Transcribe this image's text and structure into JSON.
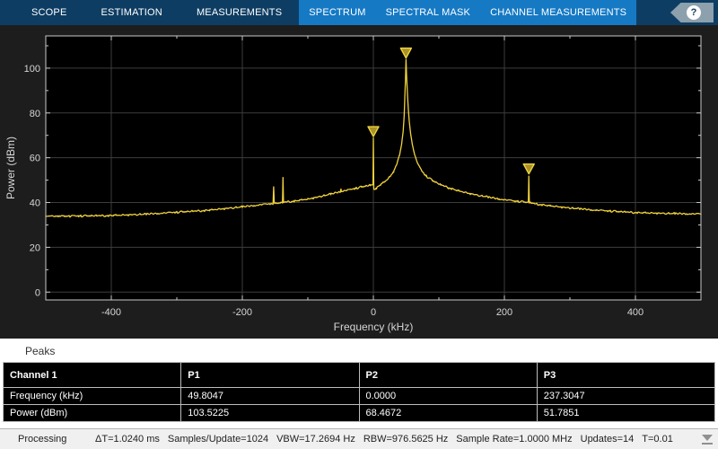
{
  "toolstrip": {
    "tabs": [
      "SCOPE",
      "ESTIMATION",
      "MEASUREMENTS"
    ],
    "context_tabs": [
      "SPECTRUM",
      "SPECTRAL MASK",
      "CHANNEL MEASUREMENTS"
    ],
    "help_label": "?",
    "colors": {
      "bar_bg": "#0e3d63",
      "context_bg": "#1679c4",
      "help_badge": "#8da0ad"
    }
  },
  "chart_data": {
    "type": "line",
    "title": "",
    "xlabel": "Frequency (kHz)",
    "ylabel": "Power (dBm)",
    "xlim": [
      -500,
      500
    ],
    "ylim": [
      -3.5,
      114.4
    ],
    "x_ticks": [
      -400,
      -200,
      0,
      200,
      400
    ],
    "y_ticks": [
      0,
      20,
      40,
      60,
      80,
      100
    ],
    "x_minor_ticks": [
      -300,
      -100,
      100,
      300
    ],
    "y_minor_ticks": [
      10,
      30,
      50,
      70,
      90,
      110
    ],
    "grid": true,
    "background": "#000000",
    "figure_background": "#1d1d1d",
    "grid_color": "#3d3d3d",
    "axis_color": "#c9c9c9",
    "text_color": "#d6d6d6",
    "trace_color": "#f0d23c",
    "marker_fill": "#a8922a",
    "noise_amplitude": 0.55,
    "envelope_points": [
      [
        -500,
        34.0
      ],
      [
        -450,
        33.9
      ],
      [
        -400,
        34.2
      ],
      [
        -350,
        34.7
      ],
      [
        -300,
        35.6
      ],
      [
        -250,
        36.6
      ],
      [
        -200,
        38.0
      ],
      [
        -170,
        39.0
      ],
      [
        -153.1,
        39.5
      ],
      [
        -152.2,
        47.3
      ],
      [
        -151.3,
        39.5
      ],
      [
        -140,
        39.9
      ],
      [
        -138.7,
        40.0
      ],
      [
        -137.9,
        50.8
      ],
      [
        -137.1,
        40.1
      ],
      [
        -120,
        40.7
      ],
      [
        -100,
        41.5
      ],
      [
        -80,
        42.7
      ],
      [
        -65,
        43.7
      ],
      [
        -53,
        44.6
      ],
      [
        -50.3,
        44.8
      ],
      [
        -49.5,
        46.3
      ],
      [
        -48.7,
        44.9
      ],
      [
        -40,
        45.4
      ],
      [
        -28,
        46.2
      ],
      [
        -18,
        46.9
      ],
      [
        -10,
        47.4
      ],
      [
        -5,
        47.7
      ],
      [
        -1.5,
        47.9
      ],
      [
        -0.6,
        48.0
      ],
      [
        0,
        68.47
      ],
      [
        0.7,
        46.2
      ],
      [
        2,
        45.9
      ],
      [
        5,
        46.5
      ],
      [
        10,
        47.8
      ],
      [
        18,
        49.4
      ],
      [
        25,
        51.4
      ],
      [
        31,
        53.8
      ],
      [
        36,
        57.3
      ],
      [
        40,
        61.3
      ],
      [
        43,
        65.8
      ],
      [
        45.5,
        71.8
      ],
      [
        47,
        78.5
      ],
      [
        48,
        86.5
      ],
      [
        49,
        95.0
      ],
      [
        49.8,
        103.52
      ],
      [
        50.8,
        96.0
      ],
      [
        52,
        88.5
      ],
      [
        53.5,
        81.0
      ],
      [
        55,
        75.5
      ],
      [
        57,
        70.5
      ],
      [
        59.5,
        66.0
      ],
      [
        62,
        62.5
      ],
      [
        65,
        59.5
      ],
      [
        69,
        56.5
      ],
      [
        74,
        54.0
      ],
      [
        80,
        51.9
      ],
      [
        90,
        49.8
      ],
      [
        102,
        48.0
      ],
      [
        115,
        46.6
      ],
      [
        130,
        45.2
      ],
      [
        148,
        43.9
      ],
      [
        168,
        42.7
      ],
      [
        190,
        41.6
      ],
      [
        215,
        40.6
      ],
      [
        236.6,
        40.0
      ],
      [
        237.3,
        51.79
      ],
      [
        238.1,
        39.9
      ],
      [
        250,
        39.3
      ],
      [
        270,
        38.5
      ],
      [
        300,
        37.5
      ],
      [
        340,
        36.5
      ],
      [
        380,
        35.8
      ],
      [
        420,
        35.3
      ],
      [
        460,
        35.0
      ],
      [
        500,
        34.8
      ]
    ],
    "peaks": {
      "labels": [
        "P1",
        "P2",
        "P3"
      ],
      "frequency_khz": [
        49.8047,
        0.0,
        237.3047
      ],
      "power_dbm": [
        103.5225,
        68.4672,
        51.7851
      ]
    }
  },
  "peaks_panel": {
    "title": "Peaks",
    "header": [
      "Channel 1",
      "P1",
      "P2",
      "P3"
    ],
    "rows": [
      [
        "Frequency (kHz)",
        "49.8047",
        "0.0000",
        "237.3047"
      ],
      [
        "Power (dBm)",
        "103.5225",
        "68.4672",
        "51.7851"
      ]
    ]
  },
  "status": {
    "state": "Processing",
    "items": [
      "ΔT=1.0240 ms",
      "Samples/Update=1024",
      "VBW=17.2694 Hz",
      "RBW=976.5625 Hz",
      "Sample Rate=1.0000 MHz",
      "Updates=14",
      "T=0.01"
    ]
  }
}
